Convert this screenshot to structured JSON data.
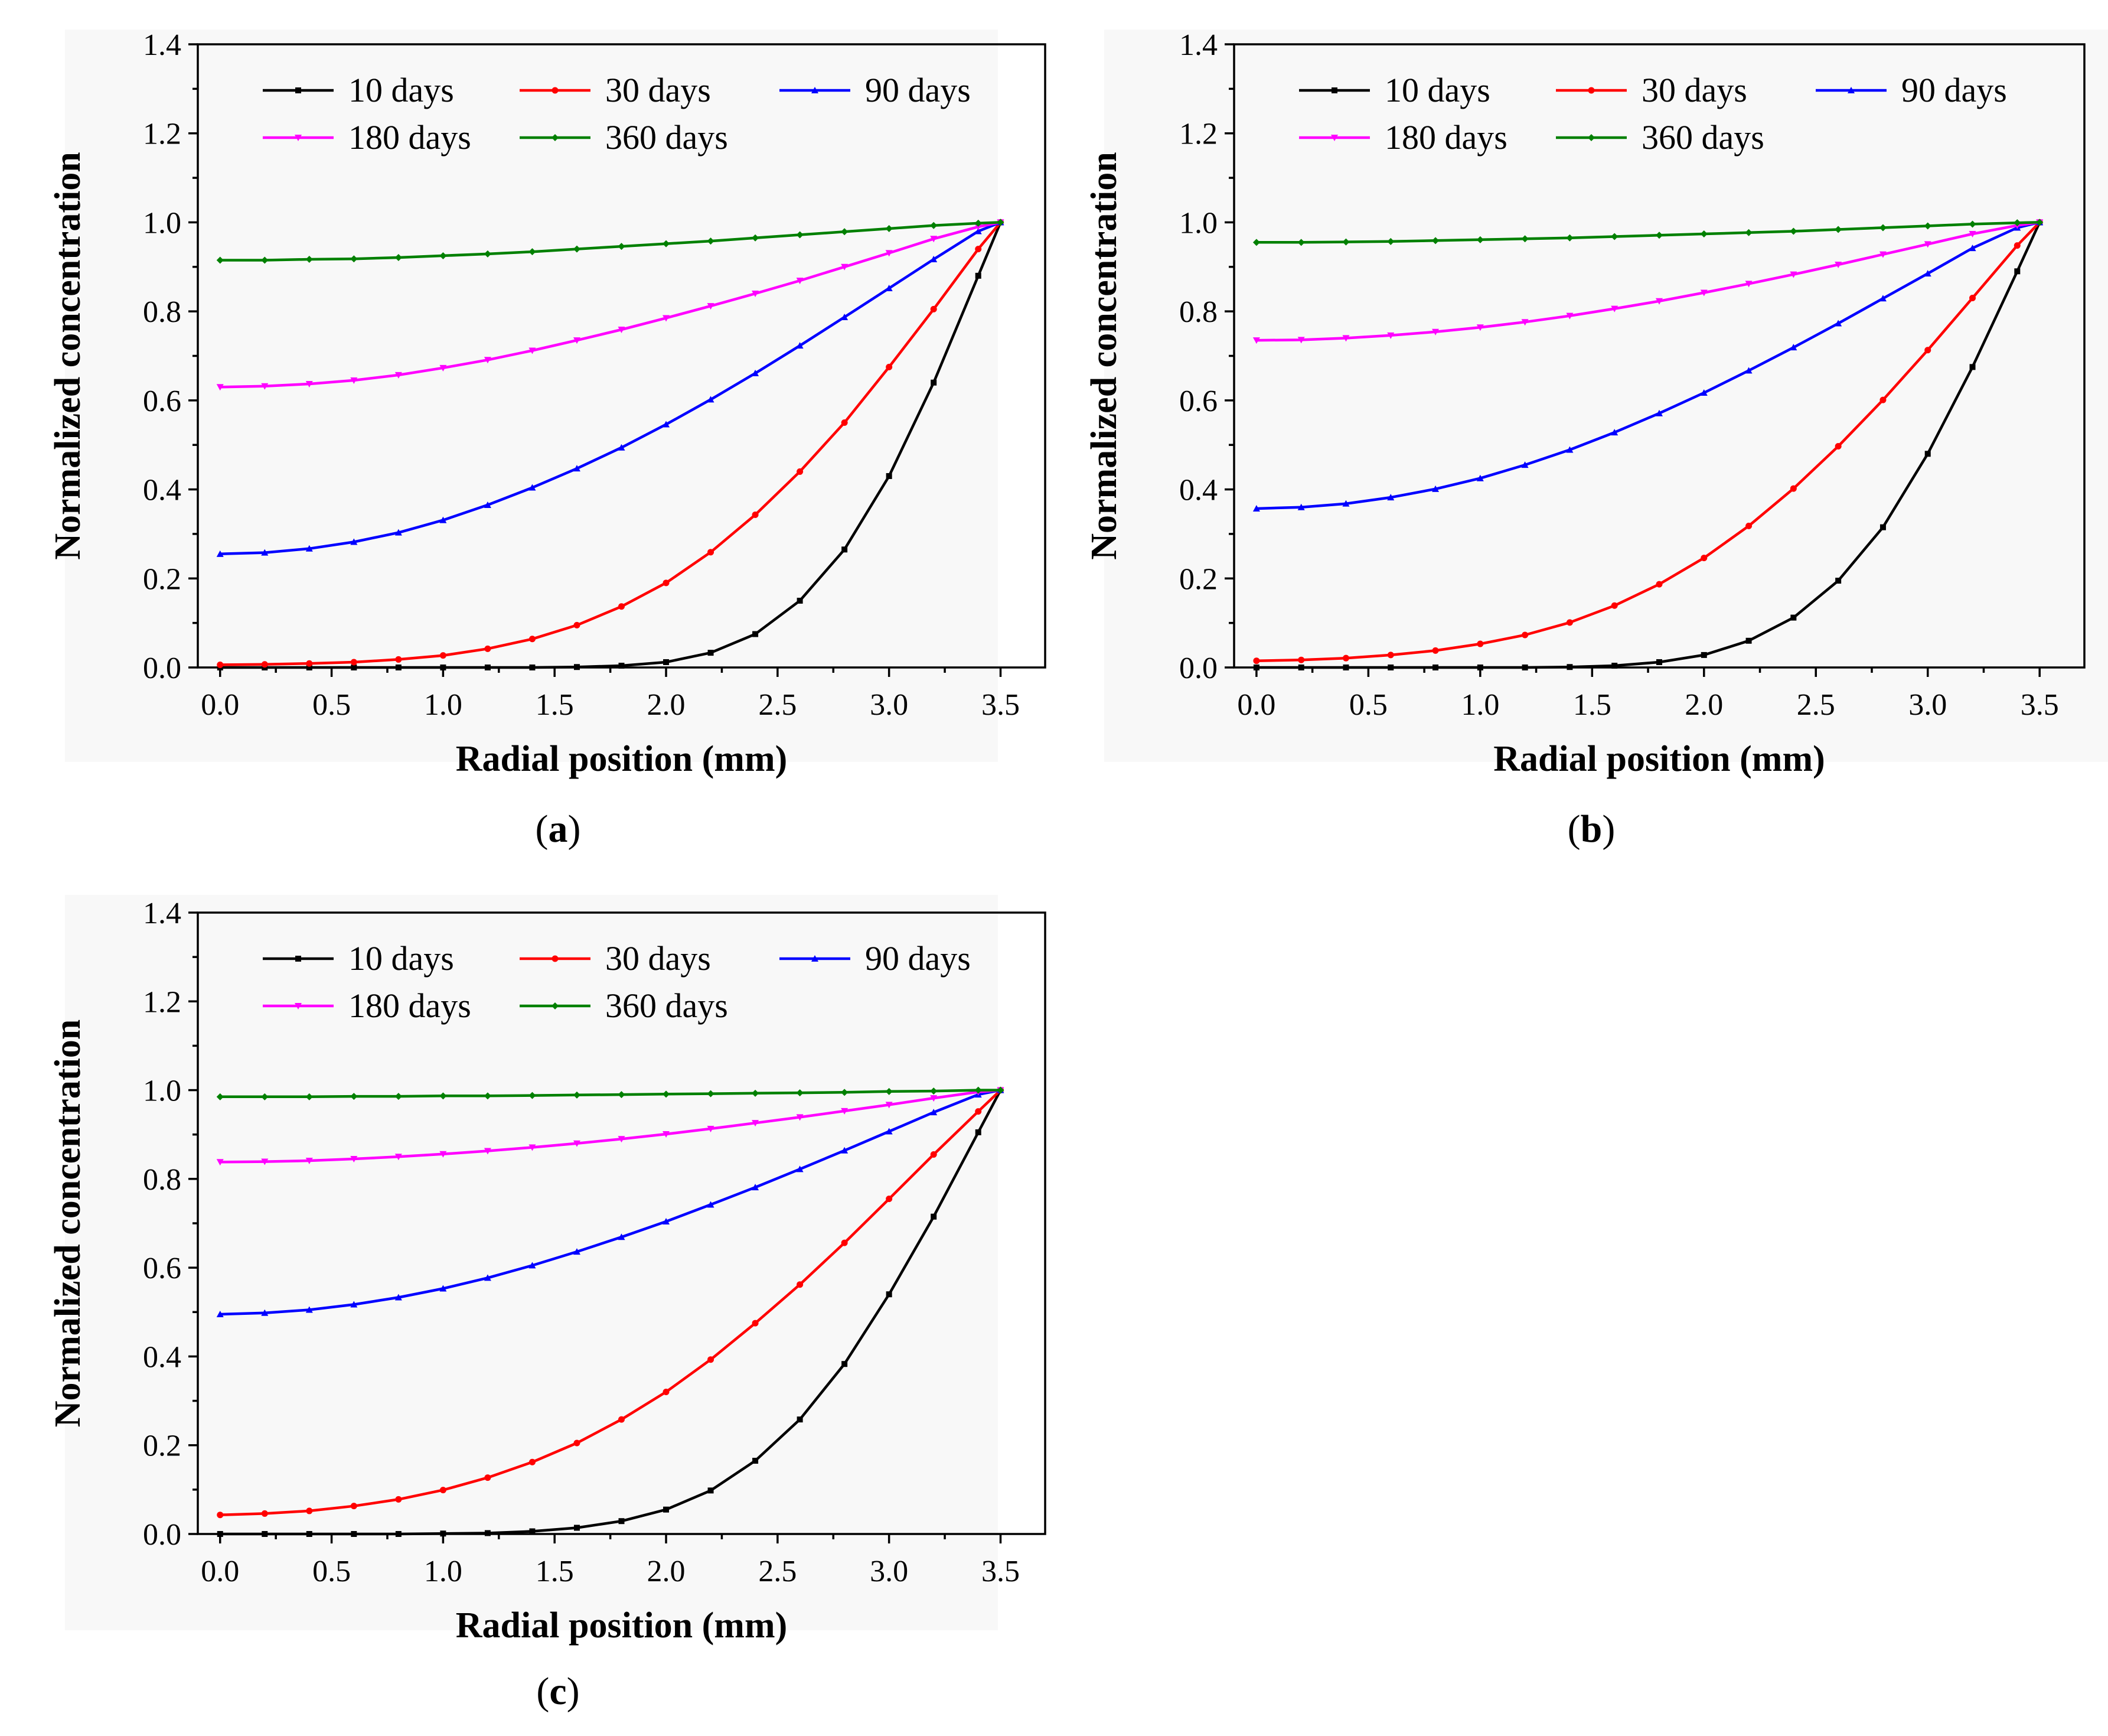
{
  "chart_data": [
    {
      "type": "line",
      "panel_label": "a",
      "xlabel": "Radial position (mm)",
      "ylabel": "Normalized concentration",
      "xlim": [
        -0.1,
        3.7
      ],
      "ylim": [
        0.0,
        1.4
      ],
      "xticks": [
        "0.0",
        "0.5",
        "1.0",
        "1.5",
        "2.0",
        "2.5",
        "3.0",
        "3.5"
      ],
      "yticks": [
        "0.0",
        "0.2",
        "0.4",
        "0.6",
        "0.8",
        "1.0",
        "1.2",
        "1.4"
      ],
      "x": [
        0.0,
        0.2,
        0.4,
        0.6,
        0.8,
        1.0,
        1.2,
        1.4,
        1.6,
        1.8,
        2.0,
        2.2,
        2.4,
        2.6,
        2.8,
        3.0,
        3.2,
        3.4,
        3.5
      ],
      "series": [
        {
          "name": "10 days",
          "color": "#000000",
          "values": [
            0.0,
            0.0,
            0.0,
            0.0,
            0.0,
            0.0,
            0.0,
            0.0,
            0.001,
            0.004,
            0.012,
            0.033,
            0.075,
            0.15,
            0.265,
            0.43,
            0.64,
            0.88,
            1.0
          ]
        },
        {
          "name": "30 days",
          "color": "#ff0000",
          "values": [
            0.006,
            0.007,
            0.009,
            0.012,
            0.018,
            0.027,
            0.042,
            0.064,
            0.095,
            0.137,
            0.19,
            0.259,
            0.343,
            0.44,
            0.55,
            0.675,
            0.805,
            0.94,
            1.0
          ]
        },
        {
          "name": "90 days",
          "color": "#0000ff",
          "values": [
            0.255,
            0.258,
            0.267,
            0.282,
            0.303,
            0.331,
            0.365,
            0.404,
            0.447,
            0.494,
            0.546,
            0.602,
            0.661,
            0.723,
            0.787,
            0.852,
            0.917,
            0.98,
            1.0
          ]
        },
        {
          "name": "180 days",
          "color": "#ff00ff",
          "values": [
            0.63,
            0.632,
            0.637,
            0.645,
            0.657,
            0.673,
            0.691,
            0.712,
            0.735,
            0.759,
            0.785,
            0.812,
            0.84,
            0.869,
            0.9,
            0.931,
            0.963,
            0.99,
            1.0
          ]
        },
        {
          "name": "360 days",
          "color": "#008000",
          "values": [
            0.915,
            0.915,
            0.917,
            0.918,
            0.921,
            0.925,
            0.929,
            0.934,
            0.94,
            0.946,
            0.952,
            0.958,
            0.965,
            0.972,
            0.979,
            0.986,
            0.993,
            0.998,
            1.0
          ]
        }
      ]
    },
    {
      "type": "line",
      "panel_label": "b",
      "xlabel": "Radial position (mm)",
      "ylabel": "Normalized concentration",
      "xlim": [
        -0.1,
        3.7
      ],
      "ylim": [
        0.0,
        1.4
      ],
      "xticks": [
        "0.0",
        "0.5",
        "1.0",
        "1.5",
        "2.0",
        "2.5",
        "3.0",
        "3.5"
      ],
      "yticks": [
        "0.0",
        "0.2",
        "0.4",
        "0.6",
        "0.8",
        "1.0",
        "1.2",
        "1.4"
      ],
      "x": [
        0.0,
        0.2,
        0.4,
        0.6,
        0.8,
        1.0,
        1.2,
        1.4,
        1.6,
        1.8,
        2.0,
        2.2,
        2.4,
        2.6,
        2.8,
        3.0,
        3.2,
        3.4,
        3.5
      ],
      "series": [
        {
          "name": "10 days",
          "color": "#000000",
          "values": [
            0.0,
            0.0,
            0.0,
            0.0,
            0.0,
            0.0,
            0.0,
            0.001,
            0.004,
            0.012,
            0.028,
            0.06,
            0.112,
            0.195,
            0.315,
            0.48,
            0.675,
            0.89,
            1.0
          ]
        },
        {
          "name": "30 days",
          "color": "#ff0000",
          "values": [
            0.015,
            0.017,
            0.021,
            0.028,
            0.038,
            0.053,
            0.073,
            0.101,
            0.139,
            0.187,
            0.246,
            0.318,
            0.402,
            0.497,
            0.601,
            0.713,
            0.83,
            0.948,
            1.0
          ]
        },
        {
          "name": "90 days",
          "color": "#0000ff",
          "values": [
            0.357,
            0.36,
            0.368,
            0.382,
            0.401,
            0.425,
            0.455,
            0.489,
            0.528,
            0.571,
            0.617,
            0.667,
            0.719,
            0.773,
            0.829,
            0.885,
            0.942,
            0.988,
            1.0
          ]
        },
        {
          "name": "180 days",
          "color": "#ff00ff",
          "values": [
            0.735,
            0.736,
            0.74,
            0.746,
            0.754,
            0.764,
            0.776,
            0.79,
            0.806,
            0.823,
            0.842,
            0.862,
            0.883,
            0.905,
            0.928,
            0.951,
            0.974,
            0.993,
            1.0
          ]
        },
        {
          "name": "360 days",
          "color": "#008000",
          "values": [
            0.955,
            0.955,
            0.956,
            0.957,
            0.959,
            0.961,
            0.963,
            0.965,
            0.968,
            0.971,
            0.974,
            0.977,
            0.98,
            0.984,
            0.988,
            0.992,
            0.996,
            0.999,
            1.0
          ]
        }
      ]
    },
    {
      "type": "line",
      "panel_label": "c",
      "xlabel": "Radial position (mm)",
      "ylabel": "Normalized concentration",
      "xlim": [
        -0.1,
        3.7
      ],
      "ylim": [
        0.0,
        1.4
      ],
      "xticks": [
        "0.0",
        "0.5",
        "1.0",
        "1.5",
        "2.0",
        "2.5",
        "3.0",
        "3.5"
      ],
      "yticks": [
        "0.0",
        "0.2",
        "0.4",
        "0.6",
        "0.8",
        "1.0",
        "1.2",
        "1.4"
      ],
      "x": [
        0.0,
        0.2,
        0.4,
        0.6,
        0.8,
        1.0,
        1.2,
        1.4,
        1.6,
        1.8,
        2.0,
        2.2,
        2.4,
        2.6,
        2.8,
        3.0,
        3.2,
        3.4,
        3.5
      ],
      "series": [
        {
          "name": "10 days",
          "color": "#000000",
          "values": [
            0.0,
            0.0,
            0.0,
            0.0,
            0.0,
            0.001,
            0.002,
            0.006,
            0.014,
            0.029,
            0.055,
            0.098,
            0.165,
            0.258,
            0.383,
            0.54,
            0.715,
            0.905,
            1.0
          ]
        },
        {
          "name": "30 days",
          "color": "#ff0000",
          "values": [
            0.043,
            0.046,
            0.052,
            0.063,
            0.078,
            0.099,
            0.127,
            0.162,
            0.205,
            0.258,
            0.32,
            0.393,
            0.475,
            0.562,
            0.656,
            0.755,
            0.855,
            0.952,
            1.0
          ]
        },
        {
          "name": "90 days",
          "color": "#0000ff",
          "values": [
            0.495,
            0.498,
            0.505,
            0.517,
            0.533,
            0.553,
            0.577,
            0.605,
            0.636,
            0.669,
            0.704,
            0.742,
            0.781,
            0.822,
            0.864,
            0.907,
            0.95,
            0.99,
            1.0
          ]
        },
        {
          "name": "180 days",
          "color": "#ff00ff",
          "values": [
            0.838,
            0.839,
            0.841,
            0.845,
            0.85,
            0.856,
            0.863,
            0.871,
            0.88,
            0.89,
            0.901,
            0.913,
            0.926,
            0.939,
            0.953,
            0.967,
            0.982,
            0.996,
            1.0
          ]
        },
        {
          "name": "360 days",
          "color": "#008000",
          "values": [
            0.985,
            0.985,
            0.985,
            0.986,
            0.986,
            0.987,
            0.987,
            0.988,
            0.989,
            0.99,
            0.991,
            0.992,
            0.993,
            0.994,
            0.995,
            0.997,
            0.998,
            1.0,
            1.0
          ]
        }
      ]
    }
  ]
}
